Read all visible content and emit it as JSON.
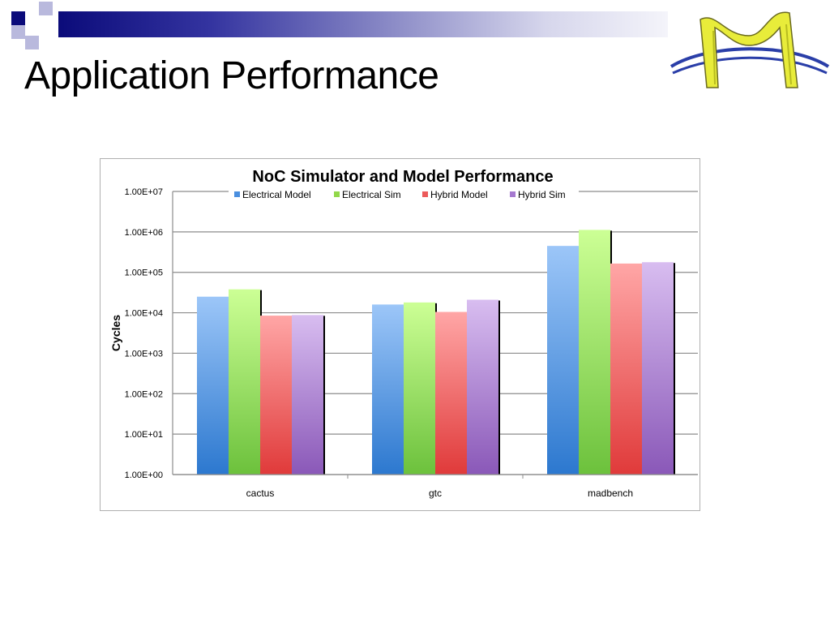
{
  "slide": {
    "title": "Application Performance"
  },
  "decor": {
    "squares": [
      {
        "color": "#0b0b7a"
      },
      {
        "color": "#ffffff"
      },
      {
        "color": "#b9b9dd"
      },
      {
        "color": "#b9b9dd"
      },
      {
        "color": "#ffffff"
      },
      {
        "color": "#b9b9dd"
      }
    ],
    "bar_gradient": [
      "#0b0b7a",
      "#f4f4fa"
    ],
    "logo_colors": {
      "arch": "#e8ec3a",
      "ring": "#2a3ea8",
      "arch_outline": "#6a6a20"
    }
  },
  "chart_data": {
    "type": "bar",
    "title": "NoC Simulator and Model Performance",
    "xlabel": "",
    "ylabel": "Cycles",
    "log_scale": true,
    "ylim": [
      1,
      10000000
    ],
    "ytick_values": [
      1,
      10,
      100,
      1000,
      10000,
      100000,
      1000000,
      10000000
    ],
    "ytick_labels": [
      "1.00E+00",
      "1.00E+01",
      "1.00E+02",
      "1.00E+03",
      "1.00E+04",
      "1.00E+05",
      "1.00E+06",
      "1.00E+07"
    ],
    "categories": [
      "cactus",
      "gtc",
      "madbench"
    ],
    "series": [
      {
        "name": "Electrical Model",
        "values": [
          25000,
          16000,
          450000
        ],
        "color": "#4a8fdf",
        "color_top": "#9cc6f8",
        "color_bottom": "#2c78cf"
      },
      {
        "name": "Electrical Sim",
        "values": [
          38000,
          18000,
          1120000
        ],
        "color": "#92d84a",
        "color_top": "#ccff95",
        "color_bottom": "#6cc13c"
      },
      {
        "name": "Hybrid Model",
        "values": [
          8500,
          10500,
          165000
        ],
        "color": "#ec5a5a",
        "color_top": "#ffa6a6",
        "color_bottom": "#e03a3a"
      },
      {
        "name": "Hybrid Sim",
        "values": [
          8800,
          21000,
          178000
        ],
        "color": "#a579cf",
        "color_top": "#d8bdf0",
        "color_bottom": "#8a58b8"
      }
    ],
    "grid": true,
    "legend_position": "top"
  }
}
